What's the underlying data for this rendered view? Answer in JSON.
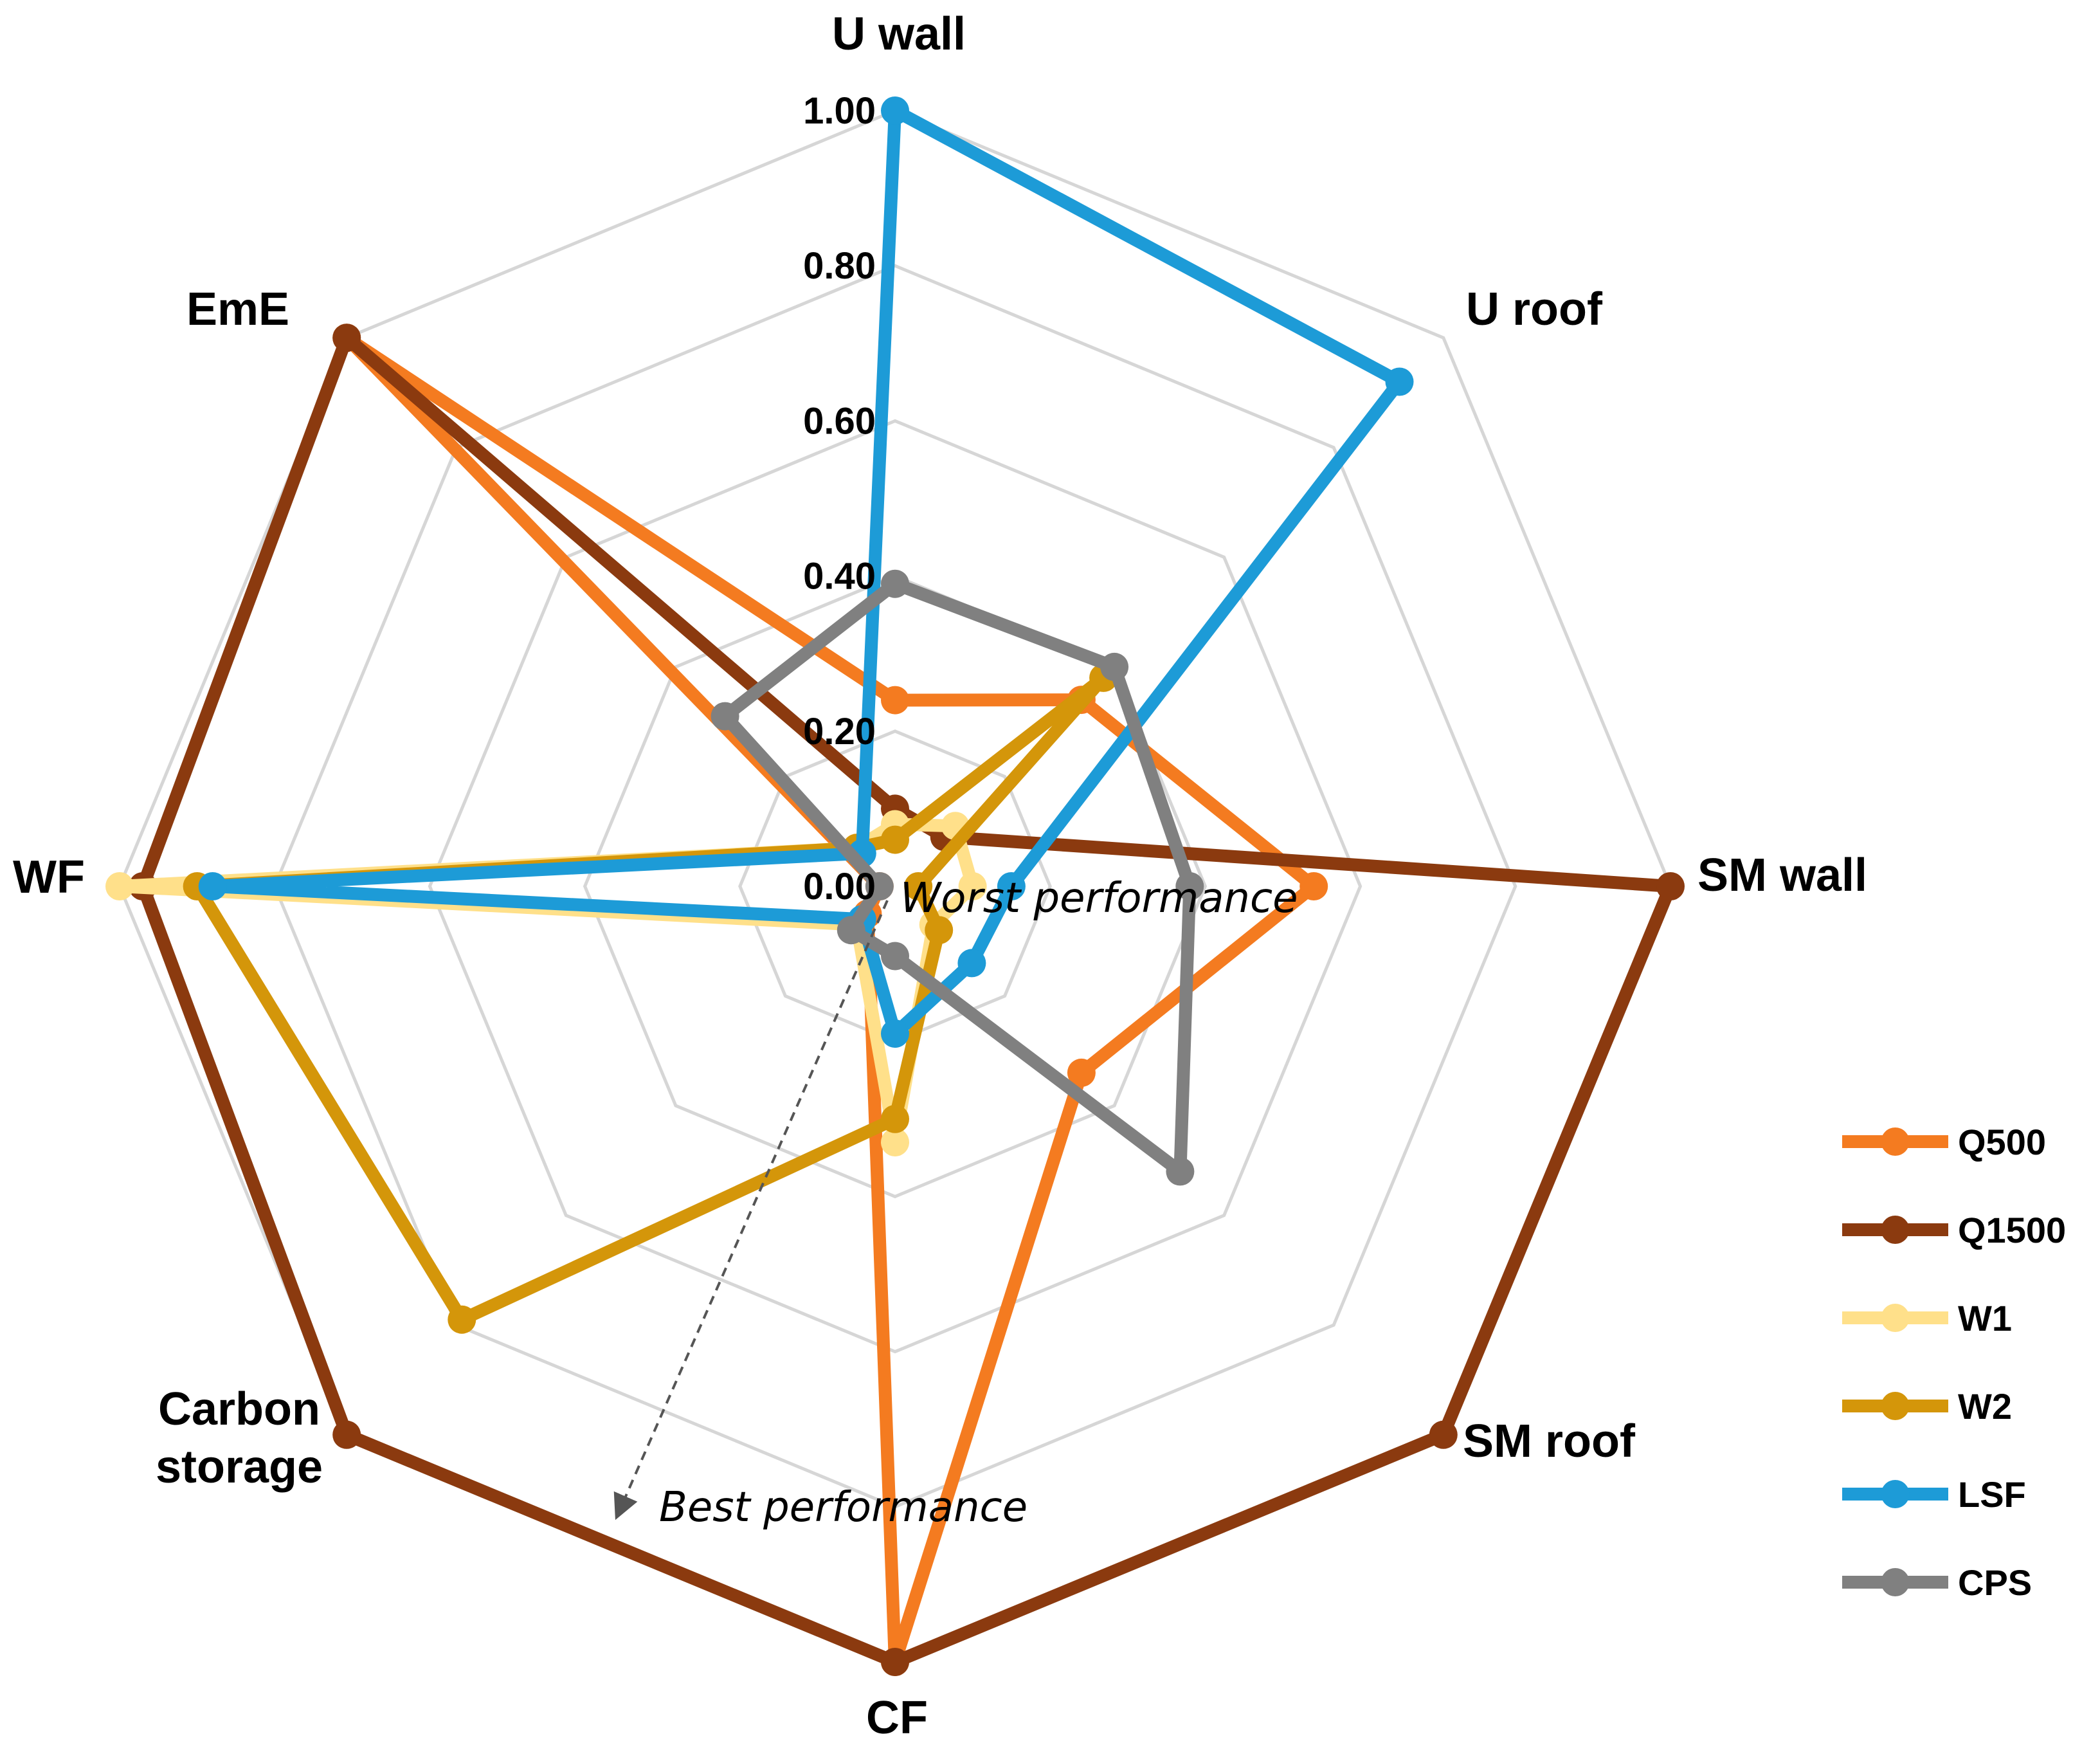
{
  "chart_data": {
    "type": "radar",
    "title": "",
    "axes": [
      "U wall",
      "U roof",
      "SM wall",
      "SM roof",
      "CF",
      "Carbon storage",
      "WF",
      "EmE"
    ],
    "axis_label_lines": {
      "Carbon storage": [
        "Carbon",
        "storage"
      ]
    },
    "rlim": [
      0,
      1
    ],
    "ticks": [
      "0.00",
      "0.20",
      "0.40",
      "0.60",
      "0.80",
      "1.00"
    ],
    "tick_values": [
      0,
      0.2,
      0.4,
      0.6,
      0.8,
      1.0
    ],
    "grid": true,
    "legend_position": "right",
    "series": [
      {
        "name": "Q500",
        "color": "#F47B20",
        "values": [
          0.24,
          0.34,
          0.54,
          0.34,
          1.0,
          0.05,
          0.02,
          1.0
        ]
      },
      {
        "name": "Q1500",
        "color": "#8B3A0F",
        "values": [
          0.1,
          0.09,
          1.0,
          1.0,
          1.0,
          1.0,
          0.97,
          1.0
        ]
      },
      {
        "name": "W1",
        "color": "#FFE08A",
        "values": [
          0.08,
          0.11,
          0.1,
          0.07,
          0.33,
          0.07,
          1.0,
          0.07
        ]
      },
      {
        "name": "W2",
        "color": "#D4960A",
        "values": [
          0.06,
          0.38,
          0.03,
          0.08,
          0.3,
          0.79,
          0.9,
          0.07
        ]
      },
      {
        "name": "LSF",
        "color": "#1D9BD7",
        "values": [
          1.0,
          0.92,
          0.15,
          0.14,
          0.19,
          0.06,
          0.88,
          0.06
        ]
      },
      {
        "name": "CPS",
        "color": "#808080",
        "values": [
          0.39,
          0.4,
          0.38,
          0.52,
          0.09,
          0.08,
          0.02,
          0.31
        ]
      }
    ],
    "annotations": {
      "worst": "Worst performance",
      "best": "Best performance"
    }
  }
}
